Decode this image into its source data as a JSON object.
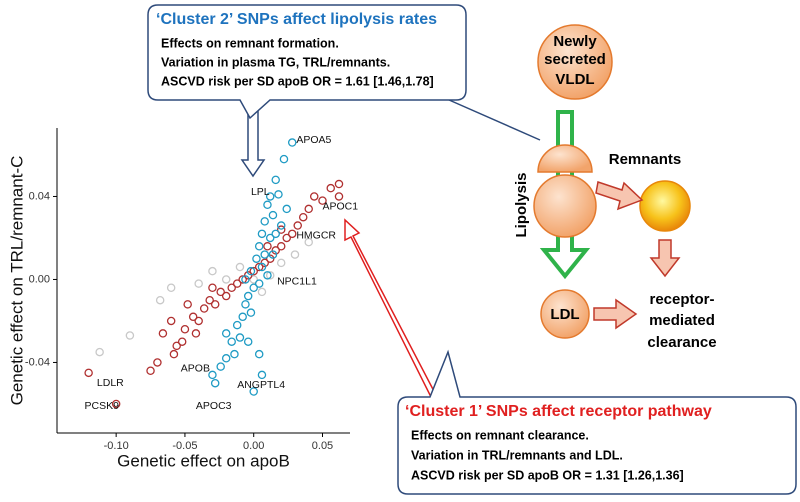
{
  "chart_data": {
    "type": "scatter",
    "xlabel": "Genetic effect on apoB",
    "ylabel": "Genetic effect on TRL/remnant-C",
    "xlim": [
      -0.143,
      0.07
    ],
    "ylim": [
      -0.074,
      0.073
    ],
    "xticks": [
      {
        "value": -0.1,
        "label": "-0.10"
      },
      -0.05,
      {
        "value": 0,
        "label": "0.00"
      },
      0.05
    ],
    "yticks": [
      -0.04,
      {
        "value": 0,
        "label": "0.00"
      },
      0.04
    ],
    "series": [
      {
        "color": "#1f9bc4",
        "x": [
          0.028,
          0.022,
          0.016,
          0.012,
          0.018,
          0.01,
          0.014,
          0.008,
          0.006,
          0.012,
          0.004,
          0.002,
          0.006,
          -0.002,
          0.0,
          -0.004,
          -0.006,
          -0.008,
          -0.012,
          -0.01,
          -0.016,
          -0.014,
          -0.02,
          -0.024,
          -0.03,
          0.0,
          0.006,
          0.004,
          -0.004,
          0.01,
          0.014,
          0.02,
          0.024,
          -0.006,
          0.004,
          -0.028,
          -0.02,
          0.008,
          -0.002,
          0.016
        ],
        "values": [
          0.066,
          0.058,
          0.048,
          0.04,
          0.041,
          0.036,
          0.031,
          0.028,
          0.022,
          0.02,
          0.016,
          0.01,
          0.006,
          0.004,
          -0.004,
          -0.008,
          -0.012,
          -0.018,
          -0.022,
          -0.028,
          -0.03,
          -0.036,
          -0.038,
          -0.042,
          -0.046,
          -0.054,
          -0.046,
          -0.036,
          -0.03,
          0.002,
          0.012,
          0.026,
          0.034,
          0.0,
          -0.002,
          -0.05,
          -0.026,
          0.012,
          -0.016,
          0.022
        ]
      },
      {
        "color": "#b03030",
        "x": [
          -0.12,
          -0.1,
          -0.075,
          -0.058,
          -0.056,
          -0.05,
          -0.044,
          -0.04,
          -0.036,
          -0.032,
          -0.028,
          -0.024,
          -0.02,
          -0.016,
          -0.012,
          -0.008,
          -0.004,
          0.0,
          0.004,
          0.008,
          0.012,
          0.016,
          0.02,
          0.024,
          0.028,
          0.032,
          0.036,
          0.04,
          0.044,
          0.05,
          0.056,
          0.062,
          0.062,
          -0.06,
          -0.048,
          -0.052,
          -0.066,
          -0.07,
          -0.03,
          0.02,
          0.01,
          -0.042
        ],
        "values": [
          -0.045,
          -0.06,
          -0.044,
          -0.036,
          -0.032,
          -0.024,
          -0.018,
          -0.02,
          -0.014,
          -0.01,
          -0.012,
          -0.006,
          -0.008,
          -0.004,
          -0.002,
          0.0,
          0.002,
          0.004,
          0.006,
          0.008,
          0.01,
          0.014,
          0.016,
          0.02,
          0.022,
          0.026,
          0.03,
          0.034,
          0.04,
          0.038,
          0.044,
          0.046,
          0.04,
          -0.02,
          -0.012,
          -0.03,
          -0.026,
          -0.04,
          -0.004,
          0.024,
          0.016,
          -0.026
        ]
      },
      {
        "color": "#c8c8c8",
        "x": [
          -0.112,
          -0.09,
          -0.068,
          -0.06,
          -0.04,
          -0.02,
          -0.01,
          0.0,
          0.006,
          0.012,
          0.02,
          0.04,
          0.03,
          -0.03
        ],
        "values": [
          -0.035,
          -0.027,
          -0.01,
          -0.004,
          -0.002,
          0.0,
          0.006,
          0.0,
          -0.006,
          0.002,
          0.008,
          0.018,
          0.012,
          0.004
        ]
      }
    ],
    "annotations": [
      {
        "text": "APOA5",
        "x": 0.031,
        "y": 0.067
      },
      {
        "text": "LPL",
        "x": -0.002,
        "y": 0.042
      },
      {
        "text": "APOC1",
        "x": 0.05,
        "y": 0.035
      },
      {
        "text": "HMGCR",
        "x": 0.031,
        "y": 0.021
      },
      {
        "text": "NPC1L1",
        "x": 0.017,
        "y": -0.001
      },
      {
        "text": "APOB",
        "x": -0.053,
        "y": -0.043
      },
      {
        "text": "ANGPTL4",
        "x": -0.012,
        "y": -0.051
      },
      {
        "text": "APOC3",
        "x": -0.042,
        "y": -0.061
      },
      {
        "text": "LDLR",
        "x": -0.114,
        "y": -0.05
      },
      {
        "text": "PCSK9",
        "x": -0.123,
        "y": -0.061
      }
    ]
  },
  "callouts": [
    {
      "title": "‘Cluster 2’ SNPs affect lipolysis rates",
      "lines": [
        "Effects on remnant formation.",
        "Variation in plasma TG, TRL/remnants.",
        "ASCVD risk per SD  apoB OR = 1.61 [1.46,1.78]"
      ]
    },
    {
      "title": "‘Cluster 1’ SNPs affect receptor pathway",
      "lines": [
        "Effects on remnant clearance.",
        "Variation in TRL/remnants and LDL.",
        "ASCVD risk per SD apoB OR = 1.31 [1.26,1.36]"
      ]
    }
  ],
  "diagram": {
    "vldl": [
      "Newly",
      "secreted",
      "VLDL"
    ],
    "lipolysis": "Lipolysis",
    "remnants": "Remnants",
    "ldl": "LDL",
    "clearance": [
      "receptor-",
      "mediated",
      "clearance"
    ]
  }
}
